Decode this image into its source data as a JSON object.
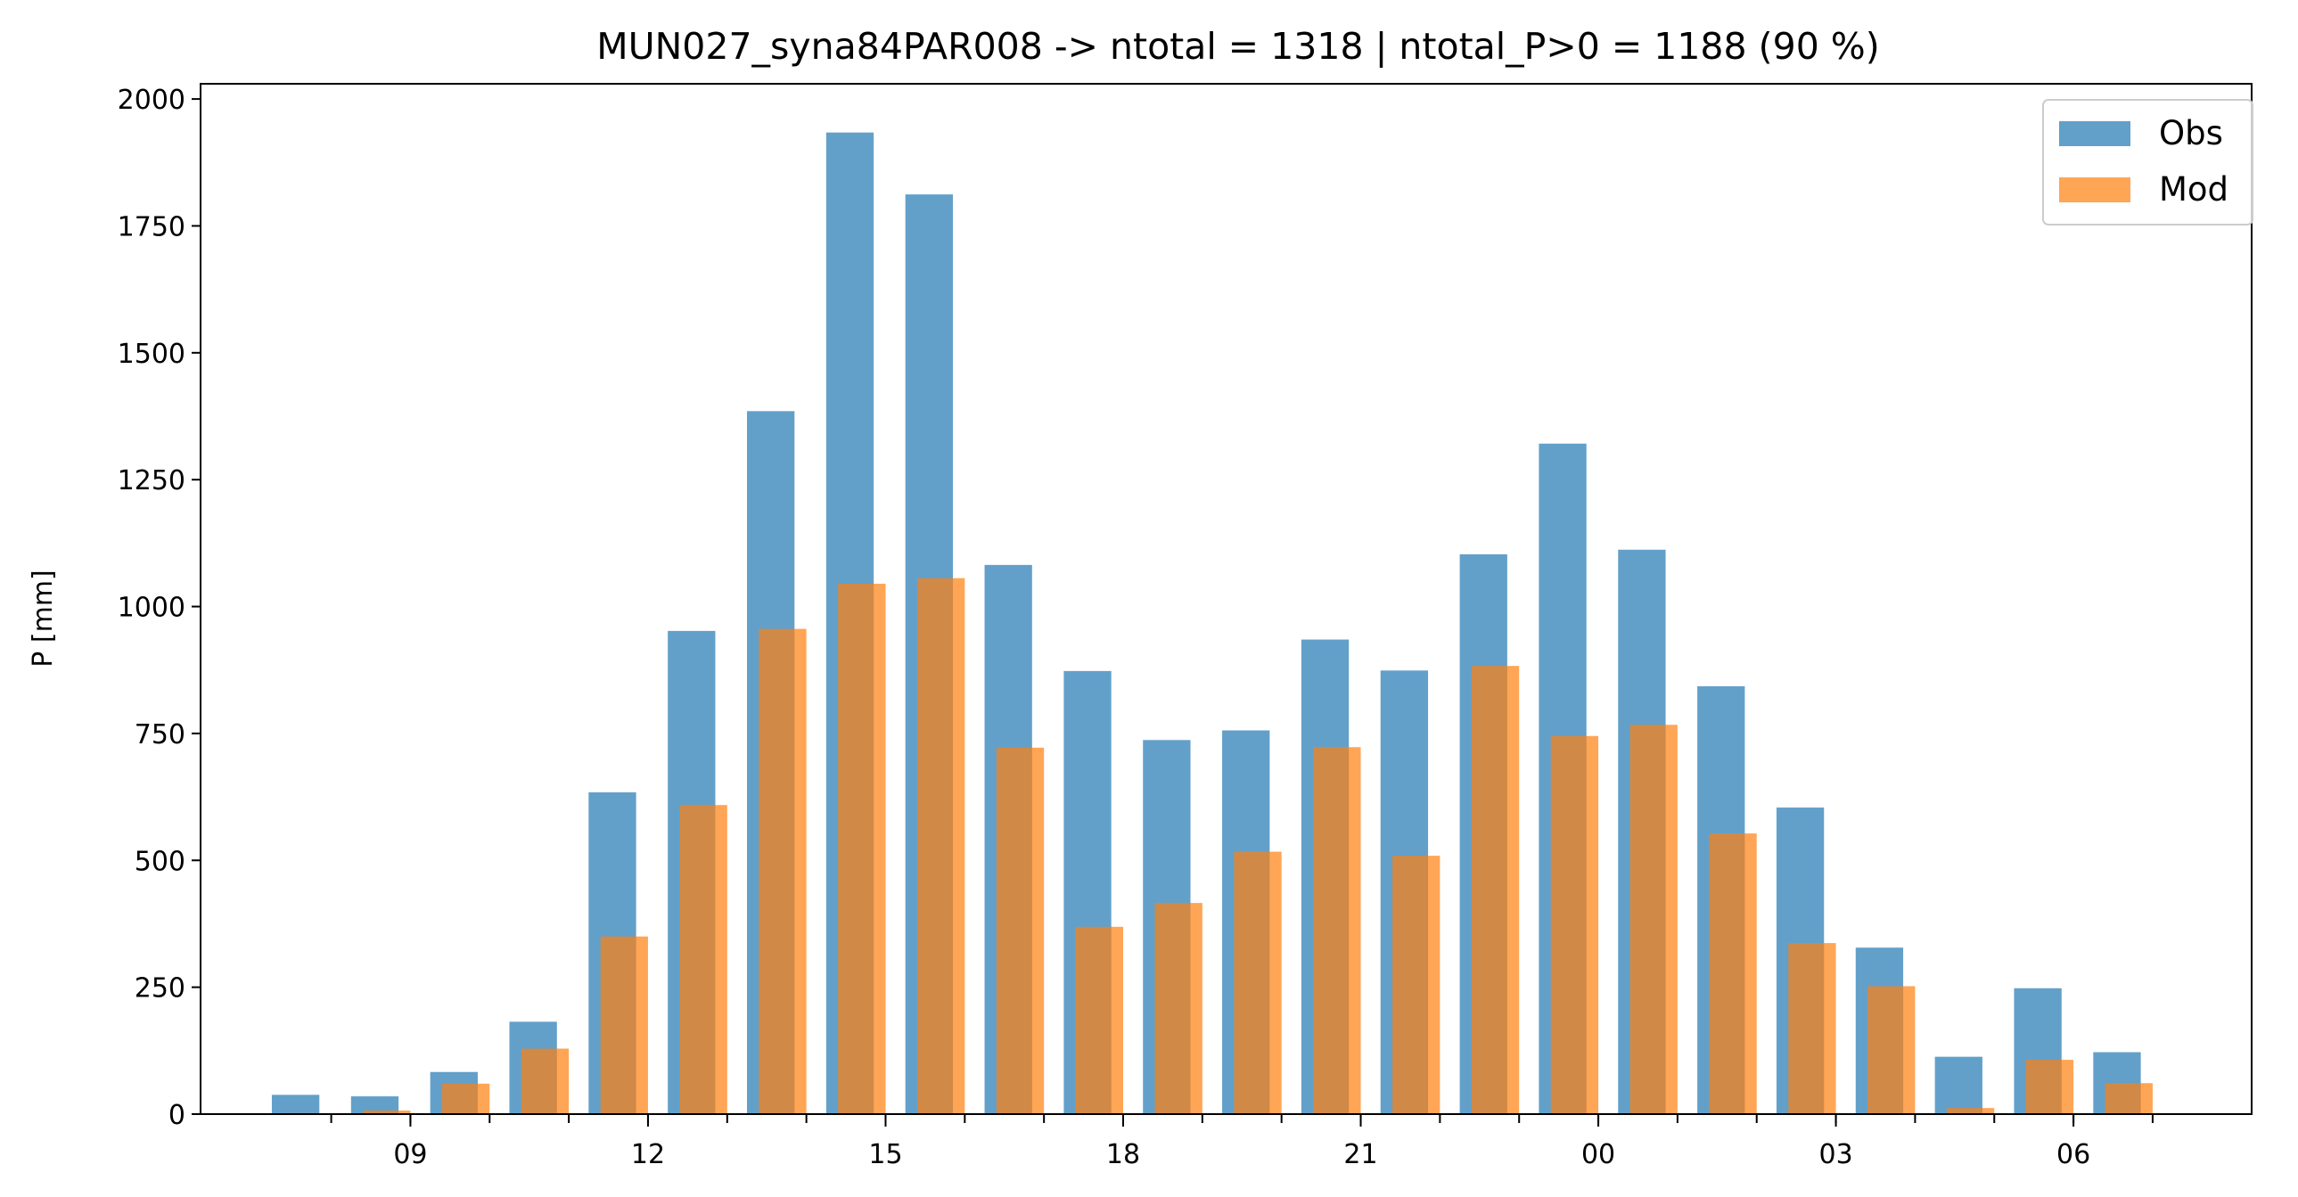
{
  "chart_data": {
    "type": "bar",
    "title": "MUN027_syna84PAR008 -> ntotal = 1318 | ntotal_P>0 = 1188 (90 %)",
    "xlabel": "",
    "ylabel": "P [mm]",
    "ylim": [
      0,
      2030
    ],
    "yticks": [
      0,
      250,
      500,
      750,
      1000,
      1250,
      1500,
      1750,
      2000
    ],
    "x_hours": [
      8,
      9,
      10,
      11,
      12,
      13,
      14,
      15,
      16,
      17,
      18,
      19,
      20,
      21,
      22,
      23,
      24,
      25,
      26,
      27,
      28,
      29,
      30,
      31
    ],
    "xlim": [
      6.8,
      32.7
    ],
    "xtick_labels": [
      {
        "hour": 9,
        "label": "09"
      },
      {
        "hour": 12,
        "label": "12"
      },
      {
        "hour": 15,
        "label": "15"
      },
      {
        "hour": 18,
        "label": "18"
      },
      {
        "hour": 21,
        "label": "21"
      },
      {
        "hour": 24,
        "label": "00"
      },
      {
        "hour": 27,
        "label": "03"
      },
      {
        "hour": 30,
        "label": "06"
      }
    ],
    "series": [
      {
        "name": "Obs",
        "color": "#1f77b4",
        "values": [
          38,
          35,
          83,
          182,
          634,
          952,
          1385,
          1934,
          1812,
          1082,
          873,
          737,
          756,
          935,
          874,
          1103,
          1321,
          1112,
          843,
          604,
          328,
          113,
          248,
          122
        ]
      },
      {
        "name": "Mod",
        "color": "#ff7f0e",
        "values": [
          2,
          7,
          60,
          129,
          350,
          609,
          956,
          1045,
          1056,
          722,
          369,
          416,
          517,
          723,
          509,
          883,
          745,
          767,
          553,
          337,
          252,
          12,
          107,
          61
        ]
      }
    ],
    "legend_position": "top-right",
    "grid": false
  }
}
